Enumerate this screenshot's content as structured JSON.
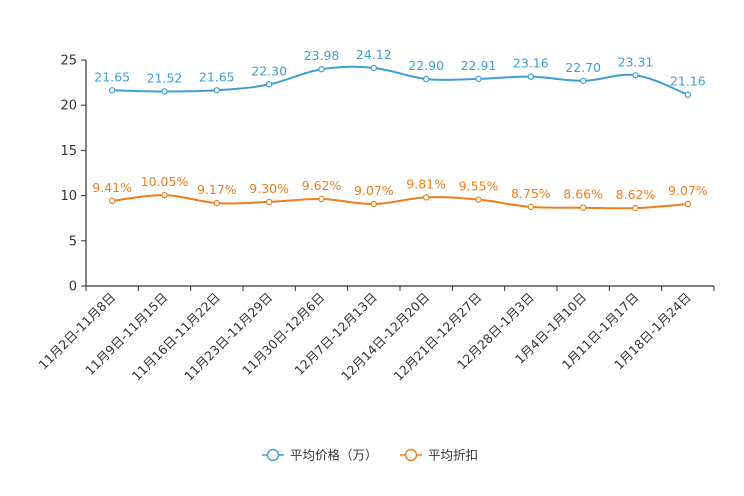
{
  "chart_data": {
    "type": "line",
    "title": "",
    "xlabel": "",
    "ylabel": "",
    "ylim": [
      0,
      25
    ],
    "yticks": [
      0,
      5,
      10,
      15,
      20,
      25
    ],
    "grid": false,
    "legend_position": "bottom-center",
    "categories": [
      "11月2日-11月8日",
      "11月9日-11月15日",
      "11月16日-11月22日",
      "11月23日-11月29日",
      "11月30日-12月6日",
      "12月7日-12月13日",
      "12月14日-12月20日",
      "12月21日-12月27日",
      "12月28日-1月3日",
      "1月4日-1月10日",
      "1月11日-1月17日",
      "1月18日-1月24日"
    ],
    "series": [
      {
        "name": "平均价格（万）",
        "color": "#3d9fd6",
        "values": [
          21.65,
          21.52,
          21.65,
          22.3,
          23.98,
          24.12,
          22.9,
          22.91,
          23.16,
          22.7,
          23.31,
          21.16
        ],
        "labels": [
          "21.65",
          "21.52",
          "21.65",
          "22.30",
          "23.98",
          "24.12",
          "22.90",
          "22.91",
          "23.16",
          "22.70",
          "23.31",
          "21.16"
        ]
      },
      {
        "name": "平均折扣",
        "color": "#f07d1e",
        "values": [
          9.41,
          10.05,
          9.17,
          9.3,
          9.62,
          9.07,
          9.81,
          9.55,
          8.75,
          8.66,
          8.62,
          9.07
        ],
        "labels": [
          "9.41%",
          "10.05%",
          "9.17%",
          "9.30%",
          "9.62%",
          "9.07%",
          "9.81%",
          "9.55%",
          "8.75%",
          "8.66%",
          "8.62%",
          "9.07%"
        ]
      }
    ]
  }
}
